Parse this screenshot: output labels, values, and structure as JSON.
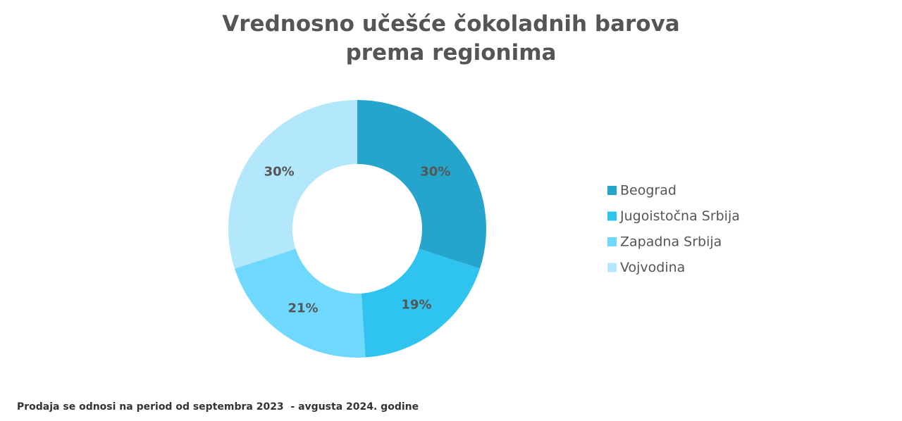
{
  "chart_data": {
    "type": "donut",
    "title": "Vrednosno učešće čokoladnih barova prema regionima",
    "categories": [
      "Beograd",
      "Jugoistočna Srbija",
      "Zapadna Srbija",
      "Vojvodina"
    ],
    "values": [
      30,
      19,
      21,
      30
    ],
    "value_labels": [
      "30%",
      "19%",
      "21%",
      "30%"
    ],
    "colors": [
      "#26a5cc",
      "#2ec4ef",
      "#6fd8fd",
      "#b3e7fb"
    ],
    "legend": "right",
    "note": "Prodaja se odnosi na period od septembra 2023  - avgusta 2024. godine"
  }
}
